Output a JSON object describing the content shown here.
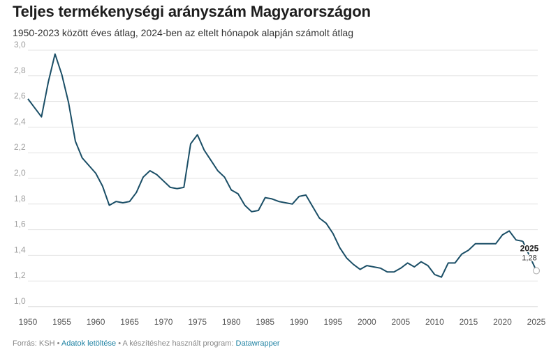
{
  "title": "Teljes termékenységi arányszám Magyarországon",
  "subtitle": "1950-2023 között éves átlag, 2024-ben az eltelt hónapok alapján számolt átlag",
  "footer": {
    "source": "Forrás: KSH",
    "sep1": " • ",
    "download_link": "Adatok letöltése",
    "sep2": " • A készítéshez használt program: ",
    "tool_link": "Datawrapper"
  },
  "colors": {
    "line": "#1a4e66",
    "grid": "#e3e3e3",
    "tick": "#a0a0a0"
  },
  "chart_data": {
    "type": "line",
    "title": "Teljes termékenységi arányszám Magyarországon",
    "subtitle": "1950-2023 között éves átlag, 2024-ben az eltelt hónapok alapján számolt átlag",
    "xlim": [
      1950,
      2025
    ],
    "ylim": [
      1.0,
      3.0
    ],
    "x_ticks": [
      1950,
      1955,
      1960,
      1965,
      1970,
      1975,
      1980,
      1985,
      1990,
      1995,
      2000,
      2005,
      2010,
      2015,
      2020,
      2025
    ],
    "y_ticks": [
      1.0,
      1.2,
      1.4,
      1.6,
      1.8,
      2.0,
      2.2,
      2.4,
      2.6,
      2.8,
      3.0
    ],
    "y_tick_labels": [
      "1,0",
      "1,2",
      "1,4",
      "1,6",
      "1,8",
      "2,0",
      "2,2",
      "2,4",
      "2,6",
      "2,8",
      "3,0"
    ],
    "grid": true,
    "series": [
      {
        "x": [
          1950,
          1951,
          1952,
          1953,
          1954,
          1955,
          1956,
          1957,
          1958,
          1959,
          1960,
          1961,
          1962,
          1963,
          1964,
          1965,
          1966,
          1967,
          1968,
          1969,
          1970,
          1971,
          1972,
          1973,
          1974,
          1975,
          1976,
          1977,
          1978,
          1979,
          1980,
          1981,
          1982,
          1983,
          1984,
          1985,
          1986,
          1987,
          1988,
          1989,
          1990,
          1991,
          1992,
          1993,
          1994,
          1995,
          1996,
          1997,
          1998,
          1999,
          2000,
          2001,
          2002,
          2003,
          2004,
          2005,
          2006,
          2007,
          2008,
          2009,
          2010,
          2011,
          2012,
          2013,
          2014,
          2015,
          2016,
          2017,
          2018,
          2019,
          2020,
          2021,
          2022,
          2023
        ],
        "values": [
          2.62,
          2.55,
          2.48,
          2.75,
          2.97,
          2.81,
          2.59,
          2.29,
          2.16,
          2.1,
          2.04,
          1.94,
          1.79,
          1.82,
          1.81,
          1.82,
          1.89,
          2.01,
          2.06,
          2.03,
          1.98,
          1.93,
          1.92,
          1.93,
          2.27,
          2.34,
          2.22,
          2.14,
          2.06,
          2.01,
          1.91,
          1.88,
          1.79,
          1.74,
          1.75,
          1.85,
          1.84,
          1.82,
          1.81,
          1.8,
          1.86,
          1.87,
          1.78,
          1.69,
          1.65,
          1.57,
          1.46,
          1.38,
          1.33,
          1.29,
          1.32,
          1.31,
          1.3,
          1.27,
          1.27,
          1.3,
          1.34,
          1.31,
          1.35,
          1.32,
          1.25,
          1.23,
          1.34,
          1.34,
          1.41,
          1.44,
          1.49,
          1.49,
          1.49,
          1.49,
          1.56,
          1.59,
          1.52,
          1.51
        ]
      }
    ],
    "estimate": {
      "from": {
        "x": 2023,
        "y": 1.51
      },
      "x": 2025,
      "y": 1.28,
      "label_year": "2025",
      "label_value": "1,28"
    }
  }
}
